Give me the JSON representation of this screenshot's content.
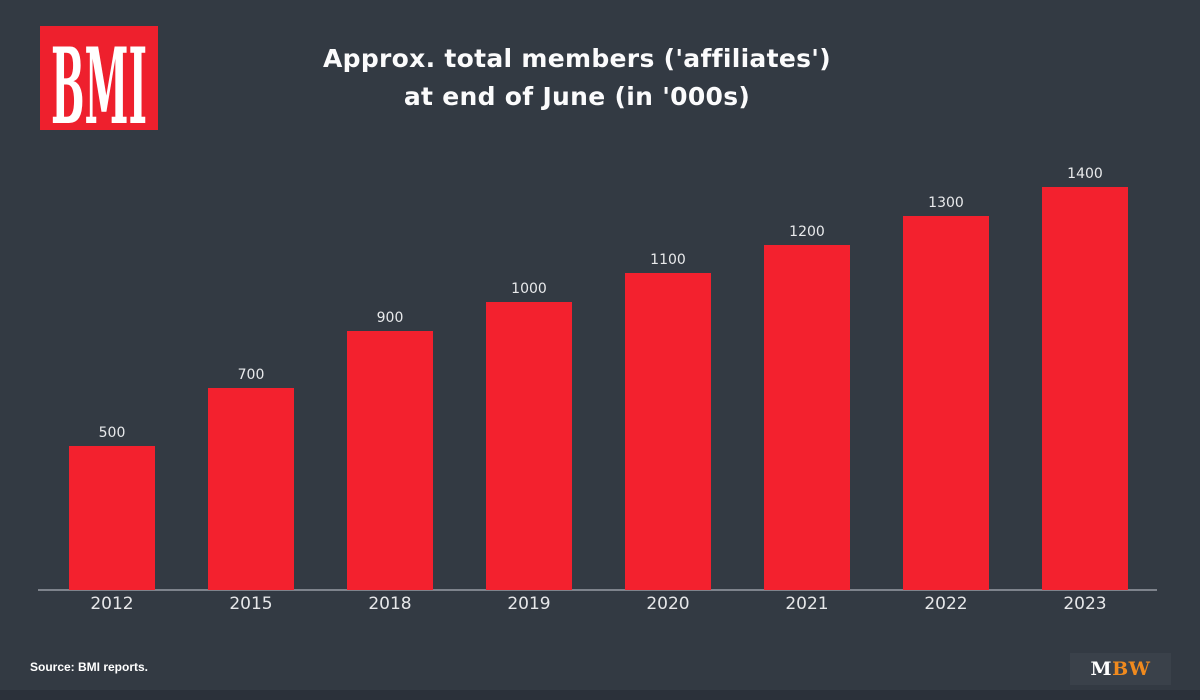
{
  "page": {
    "background_color": "#333a43",
    "bottom_bar_color": "#2b313a"
  },
  "header": {
    "bmi_logo": {
      "text": "BMI",
      "bg_color": "#ee202d",
      "text_color": "#ffffff"
    },
    "title_line1": "Approx. total members ('affiliates')",
    "title_line2": "at end of June (in '000s)"
  },
  "chart_data": {
    "type": "bar",
    "categories": [
      "2012",
      "2015",
      "2018",
      "2019",
      "2020",
      "2021",
      "2022",
      "2023"
    ],
    "values": [
      500,
      700,
      900,
      1000,
      1100,
      1200,
      1300,
      1400
    ],
    "title": "Approx. total members ('affiliates') at end of June (in '000s)",
    "xlabel": "",
    "ylabel": "",
    "ylim": [
      0,
      1450
    ],
    "grid": false,
    "legend": false,
    "value_labels_shown": true,
    "bar_color": "#f3212e",
    "axis_line_color": "#7e838c",
    "tick_label_color": "#e6e7e9",
    "value_label_color": "#e9eaec"
  },
  "footer": {
    "source_text": "Source: BMI reports.",
    "mbw_logo": {
      "part1": "M",
      "part2": "BW",
      "part1_color": "#ffffff",
      "part2_color": "#f08a1e",
      "panel_color": "#3a414a"
    }
  }
}
